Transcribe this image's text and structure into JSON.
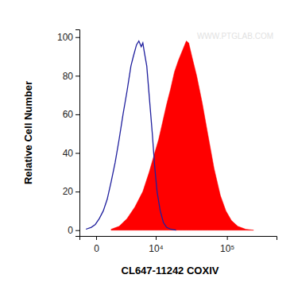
{
  "chart_data": {
    "type": "line",
    "x_label": "CL647-11242 COXIV",
    "y_label": "Relative Cell Number",
    "annotations": [
      "WWW.PTGLAB.COM"
    ],
    "log": "x",
    "xlim": [
      -1300,
      450000
    ],
    "xticks": [
      0,
      {
        "value": 10000,
        "label": "10⁴"
      },
      {
        "value": 100000,
        "label": "10⁵"
      }
    ],
    "ylim": [
      -3,
      104
    ],
    "yticks": [
      0,
      20,
      40,
      60,
      80,
      100
    ],
    "series": [
      {
        "type": "area",
        "color": "#ff0000",
        "x": [
          1140,
          1990,
          3060,
          4410,
          6140,
          7840,
          9620,
          11090,
          12740,
          14600,
          16700,
          19060,
          21720,
          24710,
          28090,
          30320,
          33540,
          39000,
          46420,
          55200,
          67160,
          81620,
          96820,
          114700,
          139200,
          177060,
          225200
        ],
        "values": [
          0.5,
          2,
          6,
          12,
          20,
          30,
          40,
          47,
          56,
          65,
          73,
          82,
          88,
          93,
          98,
          97,
          90,
          80,
          66,
          50,
          32,
          18,
          10,
          5,
          2,
          0.5,
          0
        ]
      },
      {
        "type": "line",
        "color": "#1f1f9e",
        "x": [
          -720,
          -310,
          -48,
          200,
          480,
          790,
          1140,
          1540,
          1990,
          2490,
          3060,
          3690,
          4120,
          4730,
          5220,
          5760,
          6140,
          6530,
          7160,
          7840,
          8820,
          9620,
          10480,
          11730,
          13100,
          14600,
          16700,
          20090
        ],
        "values": [
          0.5,
          1.5,
          3,
          6,
          10,
          16,
          25,
          35,
          47,
          60,
          72,
          85,
          90,
          96,
          98,
          95,
          97,
          92,
          85,
          70,
          50,
          33,
          20,
          10,
          4,
          1.5,
          0.5,
          0
        ]
      }
    ]
  }
}
